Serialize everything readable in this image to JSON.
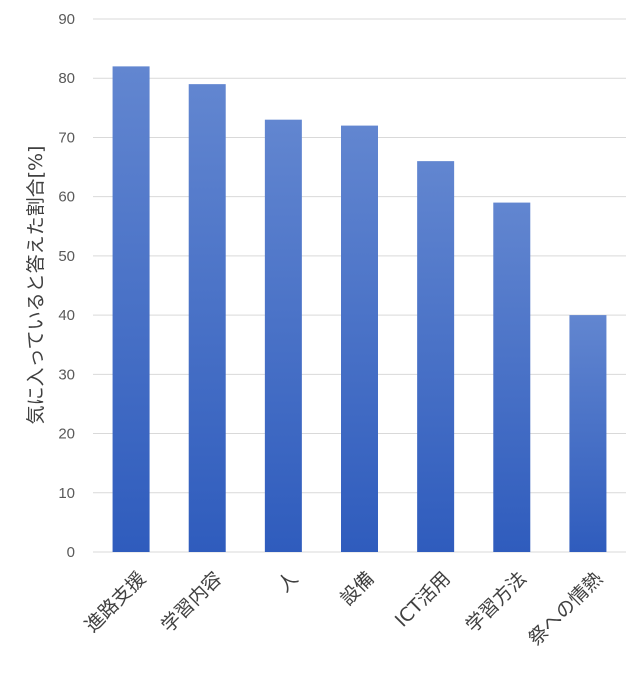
{
  "chart_data": {
    "type": "bar",
    "categories": [
      "進路支援",
      "学習内容",
      "人",
      "設備",
      "ICT活用",
      "学習方法",
      "祭への情熱"
    ],
    "values": [
      82,
      79,
      73,
      72,
      66,
      59,
      40
    ],
    "title": "",
    "xlabel": "",
    "ylabel": "気に入っていると答えた割合[%]",
    "ylim": [
      0,
      90
    ],
    "yticks": [
      0,
      10,
      20,
      30,
      40,
      50,
      60,
      70,
      80,
      90
    ],
    "grid": true,
    "legend": "none",
    "colors": {
      "bar_top": "#6286d0",
      "bar_bottom": "#2f5cbd",
      "grid": "#d9d9d9"
    }
  }
}
